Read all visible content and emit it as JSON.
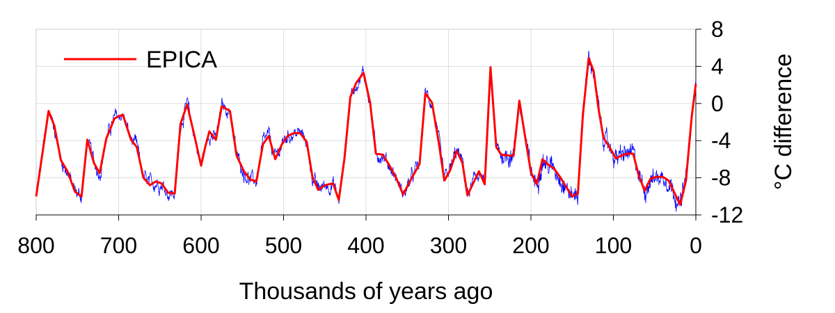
{
  "chart_data": {
    "type": "line",
    "title": "",
    "xlabel": "Thousands of years ago",
    "ylabel": "°C difference",
    "xlim": [
      800,
      0
    ],
    "ylim": [
      -12,
      8
    ],
    "x_ticks": [
      800,
      700,
      600,
      500,
      400,
      300,
      200,
      100,
      0
    ],
    "y_ticks": [
      8,
      4,
      0,
      -4,
      -8,
      -12
    ],
    "grid": true,
    "legend": {
      "position": "top-left",
      "entries": [
        "EPICA"
      ]
    },
    "colors": {
      "EPICA": "#ff0000",
      "raw": "#0000ff"
    },
    "series": [
      {
        "name": "EPICA",
        "x": [
          800,
          785,
          778,
          770,
          762,
          753,
          745,
          738,
          730,
          723,
          715,
          705,
          695,
          685,
          678,
          670,
          662,
          655,
          648,
          640,
          632,
          625,
          617,
          608,
          600,
          595,
          590,
          582,
          575,
          565,
          557,
          548,
          540,
          533,
          525,
          518,
          510,
          502,
          495,
          488,
          480,
          472,
          465,
          458,
          450,
          440,
          433,
          426,
          419,
          412,
          403,
          395,
          388,
          380,
          372,
          363,
          355,
          345,
          335,
          328,
          320,
          312,
          305,
          298,
          290,
          283,
          277,
          270,
          263,
          256,
          249,
          242,
          236,
          228,
          221,
          214,
          207,
          200,
          193,
          186,
          179,
          172,
          164,
          158,
          150,
          143,
          137,
          130,
          124,
          118,
          112,
          104,
          97,
          90,
          83,
          76,
          69,
          62,
          55,
          48,
          40,
          33,
          26,
          19,
          12,
          5,
          0
        ],
        "y": [
          -10,
          -0.8,
          -2.4,
          -6.1,
          -7.3,
          -9.5,
          -10,
          -3.9,
          -6.4,
          -7.5,
          -3.8,
          -1.6,
          -1.2,
          -3.9,
          -4.7,
          -8.0,
          -8.8,
          -8.4,
          -8.6,
          -9.6,
          -9.7,
          -2.2,
          -0.1,
          -3.5,
          -6.7,
          -4.7,
          -3.0,
          -3.9,
          -0.3,
          -0.8,
          -5.6,
          -7.3,
          -8.2,
          -8.4,
          -4.4,
          -3.5,
          -6.0,
          -4.4,
          -3.5,
          -3.2,
          -3.2,
          -4.1,
          -7.9,
          -9.3,
          -8.8,
          -8.6,
          -10.4,
          -5.8,
          0.7,
          2.2,
          3.3,
          0.1,
          -5.4,
          -5.5,
          -6.6,
          -8.1,
          -9.8,
          -8.1,
          -6.5,
          1.1,
          0.1,
          -4.1,
          -8.3,
          -7.2,
          -5.1,
          -6.4,
          -9.9,
          -8.6,
          -7.3,
          -8.7,
          3.9,
          -4.7,
          -5.5,
          -5.6,
          -5.6,
          0.3,
          -3.6,
          -7.4,
          -8.7,
          -6.0,
          -6.6,
          -7.0,
          -8.0,
          -8.9,
          -10.0,
          -9.7,
          -1.2,
          4.9,
          3.5,
          -0.6,
          -3.7,
          -4.8,
          -5.9,
          -5.6,
          -5.4,
          -5.4,
          -7.8,
          -9.4,
          -8.1,
          -7.9,
          -7.9,
          -8.3,
          -9.6,
          -10.9,
          -8.3,
          -1.4,
          2.1
        ]
      }
    ]
  }
}
